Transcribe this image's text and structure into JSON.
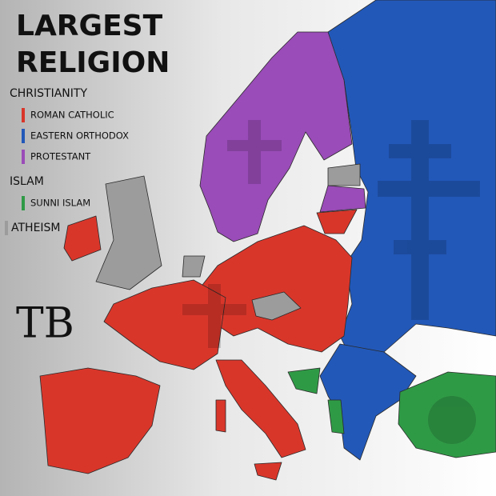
{
  "title_lines": [
    "LARGEST",
    "RELIGION"
  ],
  "logo": "TB",
  "legend": {
    "groups": [
      {
        "label": "CHRISTIANITY",
        "items": [
          {
            "label": "ROMAN CATHOLIC",
            "color": "#d9362a"
          },
          {
            "label": "EASTERN ORTHODOX",
            "color": "#2258b8"
          },
          {
            "label": "PROTESTANT",
            "color": "#9a4cb8"
          }
        ]
      },
      {
        "label": "ISLAM",
        "items": [
          {
            "label": "SUNNI ISLAM",
            "color": "#2f9a46"
          }
        ]
      },
      {
        "label": "ATHEISM",
        "color": "#9c9c9c"
      }
    ]
  }
}
